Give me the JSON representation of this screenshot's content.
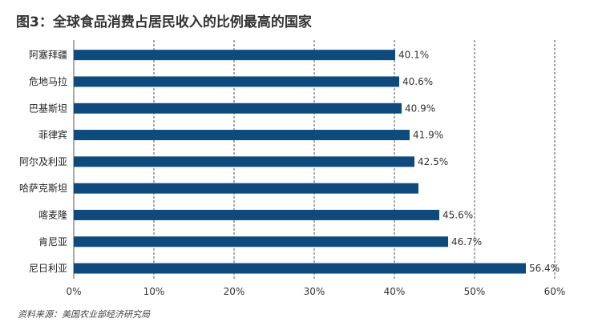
{
  "chart_data": {
    "type": "bar",
    "orientation": "horizontal",
    "title": "图3：全球食品消费占居民收入的比例最高的国家",
    "source": "资料来源：美国农业部经济研究局",
    "categories": [
      "阿塞拜疆",
      "危地马拉",
      "巴基斯坦",
      "菲律宾",
      "阿尔及利亚",
      "哈萨克斯坦",
      "喀麦隆",
      "肯尼亚",
      "尼日利亚"
    ],
    "values": [
      40.1,
      40.6,
      40.9,
      41.9,
      42.5,
      43.0,
      45.6,
      46.7,
      56.4
    ],
    "data_labels": [
      "40.1%",
      "40.6%",
      "40.9%",
      "41.9%",
      "42.5%",
      "",
      "45.6%",
      "46.7%",
      "56.4%"
    ],
    "xlim": [
      0,
      60
    ],
    "ticks": [
      0,
      10,
      20,
      30,
      40,
      50,
      60
    ],
    "tick_labels": [
      "0%",
      "10%",
      "20%",
      "30%",
      "40%",
      "50%",
      "60%"
    ],
    "grid": "vertical-dashed",
    "legend": "none",
    "bar_color": "#0e4a7e",
    "grid_color": "#555555",
    "text_color": "#222222"
  }
}
